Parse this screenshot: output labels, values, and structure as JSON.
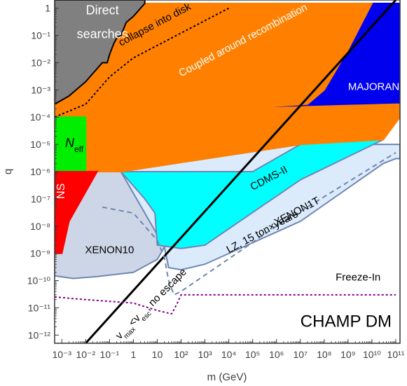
{
  "chart_data": {
    "type": "area",
    "title": "",
    "xlabel": "m (GeV)",
    "ylabel": "q",
    "x_scale": "log",
    "y_scale": "log",
    "xlim": [
      0.0005,
      150000000000
    ],
    "ylim": [
      5e-13,
      2
    ],
    "x_ticks": [
      {
        "value": 0.001,
        "label": "10⁻³"
      },
      {
        "value": 0.01,
        "label": "10⁻²"
      },
      {
        "value": 0.1,
        "label": "10⁻¹"
      },
      {
        "value": 1,
        "label": "1"
      },
      {
        "value": 10,
        "label": "10"
      },
      {
        "value": 100,
        "label": "10²"
      },
      {
        "value": 1000,
        "label": "10³"
      },
      {
        "value": 10000,
        "label": "10⁴"
      },
      {
        "value": 100000,
        "label": "10⁵"
      },
      {
        "value": 1000000,
        "label": "10⁶"
      },
      {
        "value": 10000000,
        "label": "10⁷"
      },
      {
        "value": 100000000,
        "label": "10⁸"
      },
      {
        "value": 1000000000,
        "label": "10⁹"
      },
      {
        "value": 10000000000,
        "label": "10¹⁰"
      },
      {
        "value": 100000000000,
        "label": "10¹¹"
      }
    ],
    "y_ticks": [
      {
        "value": 1e-12,
        "label": "10⁻¹²"
      },
      {
        "value": 1e-11,
        "label": "10⁻¹¹"
      },
      {
        "value": 1e-10,
        "label": "10⁻¹⁰"
      },
      {
        "value": 1e-09,
        "label": "10⁻⁹"
      },
      {
        "value": 1e-08,
        "label": "10⁻⁸"
      },
      {
        "value": 1e-07,
        "label": "10⁻⁷"
      },
      {
        "value": 1e-06,
        "label": "10⁻⁶"
      },
      {
        "value": 1e-05,
        "label": "10⁻⁵"
      },
      {
        "value": 0.0001,
        "label": "10⁻⁴"
      },
      {
        "value": 0.001,
        "label": "10⁻³"
      },
      {
        "value": 0.01,
        "label": "10⁻²"
      },
      {
        "value": 0.1,
        "label": "10⁻¹"
      },
      {
        "value": 1,
        "label": "1"
      }
    ],
    "regions": [
      {
        "name": "xenon10",
        "fill": "#cdd6e6",
        "stroke": "#6f86b3",
        "points": [
          [
            0.0005,
            4e-09
          ],
          [
            0.0005,
            1.5e-10
          ],
          [
            0.003,
            1.2e-10
          ],
          [
            0.03,
            1.4e-10
          ],
          [
            1,
            2e-10
          ],
          [
            10,
            6e-10
          ],
          [
            20,
            1.7e-09
          ],
          [
            5,
            3e-08
          ],
          [
            0.3,
            1e-06
          ],
          [
            0.003,
            1e-06
          ],
          [
            0.0005,
            1e-06
          ]
        ]
      },
      {
        "name": "xenon1t",
        "fill": "#dcebfb",
        "stroke": "#6f86b3",
        "points": [
          [
            20,
            1.7e-09
          ],
          [
            30,
            3e-10
          ],
          [
            100,
            2.5e-10
          ],
          [
            1000,
            4e-10
          ],
          [
            10000000,
            1.5e-08
          ],
          [
            30000000000,
            2e-06
          ],
          [
            100000000000,
            3e-06
          ],
          [
            150000000000,
            3e-06
          ],
          [
            150000000000,
            1e-05
          ],
          [
            10000000,
            1e-05
          ],
          [
            0.3,
            1e-06
          ]
        ]
      },
      {
        "name": "cdms2",
        "fill": "#00ffff",
        "stroke": "#6f86b3",
        "points": [
          [
            0.3,
            1e-06
          ],
          [
            3,
            1e-07
          ],
          [
            8,
            3e-08
          ],
          [
            10,
            2e-09
          ],
          [
            100,
            1.5e-09
          ],
          [
            1000,
            2e-09
          ],
          [
            10000000,
            5e-07
          ],
          [
            30000000000,
            1.5e-05
          ],
          [
            100000000000,
            0.0001
          ],
          [
            150000000000,
            0.0001
          ],
          [
            150000000000,
            0.0003
          ],
          [
            100000000000,
            0.0003
          ],
          [
            100000000,
            0.0002
          ],
          [
            10000000,
            1e-05
          ],
          [
            100000,
            1e-06
          ],
          [
            1,
            1e-06
          ]
        ]
      },
      {
        "name": "majorana",
        "fill": "#0000ee",
        "stroke": "#0000ee",
        "points": [
          [
            10000,
            0.0002
          ],
          [
            300000,
            0.0002
          ],
          [
            10000000,
            0.0003
          ],
          [
            20000000,
            0.0003
          ],
          [
            100000000,
            0.001
          ],
          [
            1000000000,
            0.03
          ],
          [
            10000000000,
            1.5
          ],
          [
            150000000000,
            1.5
          ],
          [
            150000000000,
            0.00015
          ],
          [
            100000000000,
            0.0002
          ],
          [
            10000000,
            0.00025
          ],
          [
            100000,
            0.0002
          ]
        ]
      },
      {
        "name": "coupled",
        "fill": "#ff8000",
        "stroke": "#ff8000",
        "points": [
          [
            0.0005,
            0.0003
          ],
          [
            0.002,
            0.0006
          ],
          [
            0.01,
            0.002
          ],
          [
            0.05,
            0.01
          ],
          [
            0.08,
            0.01
          ],
          [
            0.1,
            0.02
          ],
          [
            0.15,
            0.05
          ],
          [
            0.2,
            0.08
          ],
          [
            0.3,
            0.1
          ],
          [
            0.5,
            0.3
          ],
          [
            1,
            0.5
          ],
          [
            2,
            1
          ],
          [
            3,
            1.5
          ],
          [
            1000000000,
            1.5
          ],
          [
            10000000000,
            1.5
          ],
          [
            1000000000,
            0.03
          ],
          [
            100000000,
            0.001
          ],
          [
            20000000,
            0.0003
          ],
          [
            10000,
            0.0002
          ],
          [
            100000000000,
            0.0003
          ],
          [
            150000000000,
            0.0003
          ],
          [
            150000000000,
            0.0001
          ],
          [
            30000000000,
            1.5e-05
          ],
          [
            10000000,
            1e-05
          ],
          [
            0.3,
            1e-06
          ],
          [
            0.01,
            1e-06
          ],
          [
            0.0005,
            1e-06
          ]
        ]
      },
      {
        "name": "direct-searches",
        "fill": "#808080",
        "stroke": "#000000",
        "points": [
          [
            0.0005,
            2
          ],
          [
            3,
            2
          ],
          [
            3,
            1.5
          ],
          [
            2,
            1
          ],
          [
            1,
            0.5
          ],
          [
            0.5,
            0.3
          ],
          [
            0.3,
            0.1
          ],
          [
            0.2,
            0.08
          ],
          [
            0.15,
            0.05
          ],
          [
            0.1,
            0.02
          ],
          [
            0.08,
            0.01
          ],
          [
            0.05,
            0.01
          ],
          [
            0.01,
            0.002
          ],
          [
            0.002,
            0.0006
          ],
          [
            0.0005,
            0.0003
          ]
        ]
      },
      {
        "name": "neff",
        "fill": "#00ee00",
        "stroke": "#00ee00",
        "points": [
          [
            0.0005,
            1e-06
          ],
          [
            0.01,
            1e-06
          ],
          [
            0.01,
            0.0001
          ],
          [
            0.0005,
            0.0001
          ]
        ]
      },
      {
        "name": "ns",
        "fill": "#ff0000",
        "stroke": "#ff0000",
        "points": [
          [
            0.0005,
            1e-06
          ],
          [
            0.03,
            1e-06
          ],
          [
            0.002,
            1.5e-08
          ],
          [
            0.001,
            1e-09
          ],
          [
            0.0005,
            1e-09
          ]
        ]
      }
    ],
    "lines": [
      {
        "name": "collapse-into-disk",
        "style": "dotted",
        "color": "#000000",
        "points": [
          [
            0.0005,
            0.0001
          ],
          [
            0.01,
            0.0003
          ],
          [
            0.1,
            0.003
          ],
          [
            1,
            0.015
          ],
          [
            10000,
            1
          ]
        ]
      },
      {
        "name": "escape-line",
        "style": "solid",
        "color": "#000000",
        "points": [
          [
            0.01,
            5e-13
          ],
          [
            100000000000,
            2
          ]
        ]
      },
      {
        "name": "lz",
        "style": "dashed",
        "color": "#6f86b3",
        "points": [
          [
            0.05,
            5e-08
          ],
          [
            1,
            3e-08
          ],
          [
            10,
            3e-09
          ],
          [
            20,
            7e-10
          ],
          [
            30,
            1e-10
          ],
          [
            50,
            3e-11
          ],
          [
            100,
            4e-11
          ],
          [
            1000000,
            1e-08
          ],
          [
            100000000000,
            5e-06
          ]
        ]
      },
      {
        "name": "freeze-in",
        "style": "dotted",
        "color": "#880088",
        "points": [
          [
            0.0005,
            2.5e-11
          ],
          [
            0.01,
            2e-11
          ],
          [
            1,
            1.5e-11
          ],
          [
            10,
            8e-12
          ],
          [
            40,
            6e-12
          ],
          [
            70,
            1.5e-11
          ],
          [
            100,
            3e-11
          ],
          [
            100000000000,
            3e-11
          ]
        ]
      }
    ],
    "annotations": [
      {
        "text": "Direct",
        "x": 0.05,
        "y": 0.6,
        "color": "#ffffff",
        "size": 18,
        "anchor": "middle"
      },
      {
        "text": "searches",
        "x": 0.05,
        "y": 0.08,
        "color": "#ffffff",
        "size": 18,
        "anchor": "middle"
      },
      {
        "text": "collapse into disk",
        "x": 0.3,
        "y": 0.04,
        "color": "#000000",
        "size": 15,
        "rotate": -28
      },
      {
        "text": "Coupled around recombination",
        "x": 100,
        "y": 0.003,
        "color": "#ffffff",
        "size": 15,
        "rotate": -28
      },
      {
        "text": "MAJORANA",
        "x": 1000000000,
        "y": 0.001,
        "color": "#ffffff",
        "size": 15
      },
      {
        "text": "CDMS-II",
        "x": 100000,
        "y": 2e-07,
        "color": "#000000",
        "size": 15,
        "rotate": -28
      },
      {
        "text": "XENON1T",
        "x": 1000000,
        "y": 1e-08,
        "color": "#000000",
        "size": 15,
        "rotate": -28
      },
      {
        "text": "XENON10",
        "x": 0.1,
        "y": 1e-09,
        "color": "#000000",
        "size": 15,
        "anchor": "middle"
      },
      {
        "text": "LZ, 15 ton×years",
        "x": 10000,
        "y": 1e-09,
        "color": "#000000",
        "size": 15,
        "rotate": -28
      },
      {
        "text": "Freeze-In",
        "x": 300000000,
        "y": 1e-10,
        "color": "#000000",
        "size": 15
      },
      {
        "text": "CHAMP DM",
        "x": 10000000,
        "y": 2e-12,
        "color": "#000000",
        "size": 24
      },
      {
        "text": "NS",
        "x": 0.0013,
        "y": 1e-07,
        "color": "#ffffff",
        "size": 16,
        "rotate": -90
      },
      {
        "text": "v_max < v_esc, no escape",
        "x": 40,
        "y": 1e-10,
        "color": "#000000",
        "size": 15,
        "rotate": -45
      },
      {
        "text": "N_eff",
        "x": 0.0012,
        "y": 1e-05,
        "color": "#000000",
        "size": 18
      }
    ]
  }
}
